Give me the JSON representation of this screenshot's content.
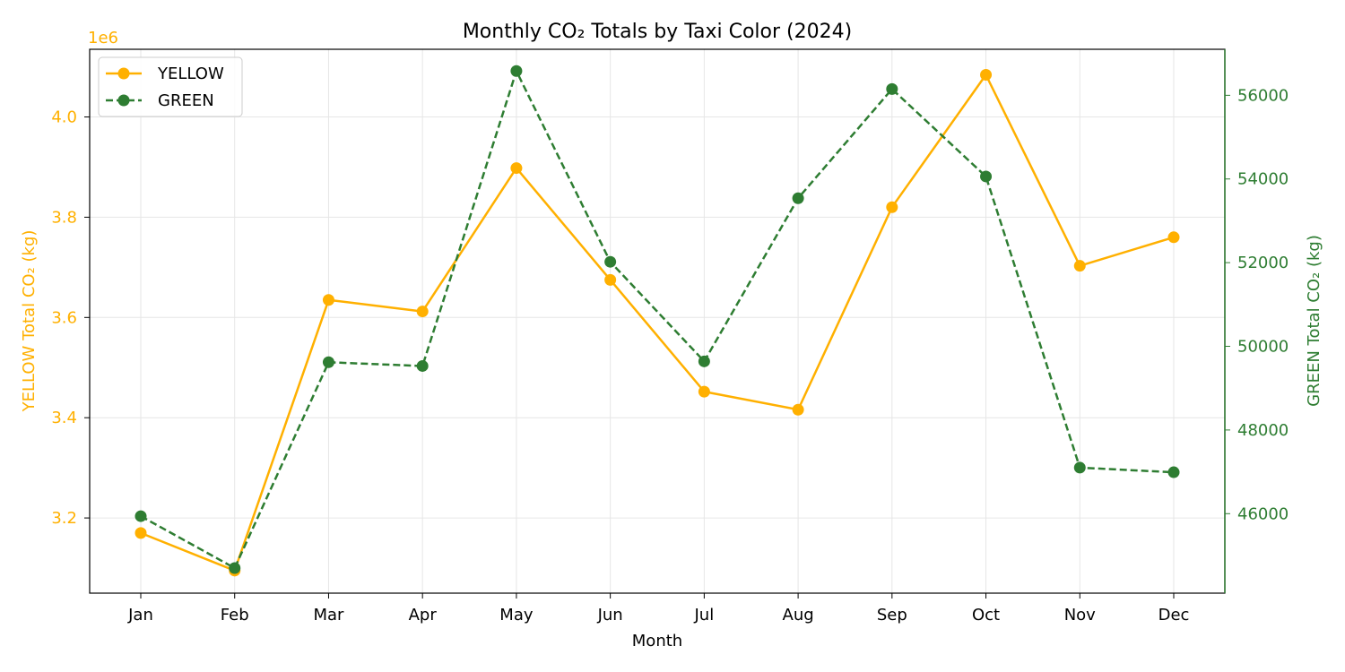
{
  "chart_data": {
    "type": "line",
    "title": "Monthly CO₂ Totals by Taxi Color (2024)",
    "xlabel": "Month",
    "categories": [
      "Jan",
      "Feb",
      "Mar",
      "Apr",
      "May",
      "Jun",
      "Jul",
      "Aug",
      "Sep",
      "Oct",
      "Nov",
      "Dec"
    ],
    "y_left": {
      "label": "YELLOW Total CO₂ (kg)",
      "offset_text": "1e6",
      "range": [
        3.05,
        4.135
      ],
      "ticks": [
        3.2,
        3.4,
        3.6,
        3.8,
        4.0
      ],
      "tick_labels": [
        "3.2",
        "3.4",
        "3.6",
        "3.8",
        "4.0"
      ],
      "color": "#ffb000"
    },
    "y_right": {
      "label": "GREEN Total CO₂ (kg)",
      "range": [
        44100,
        57100
      ],
      "ticks": [
        46000,
        48000,
        50000,
        52000,
        54000,
        56000
      ],
      "tick_labels": [
        "46000",
        "48000",
        "50000",
        "52000",
        "54000",
        "56000"
      ],
      "color": "#2e7d32"
    },
    "series": [
      {
        "name": "YELLOW",
        "axis": "left",
        "color": "#ffb000",
        "line_style": "solid",
        "marker": "circle",
        "values": [
          3.17,
          3.095,
          3.635,
          3.612,
          3.898,
          3.675,
          3.452,
          3.416,
          3.82,
          4.084,
          3.703,
          3.76
        ]
      },
      {
        "name": "GREEN",
        "axis": "right",
        "color": "#2e7d32",
        "line_style": "dashed",
        "marker": "circle",
        "values": [
          45940,
          44700,
          49620,
          49530,
          56580,
          52020,
          49640,
          53540,
          56150,
          54060,
          47100,
          46990
        ]
      }
    ],
    "grid": true,
    "legend_position": "top-left"
  }
}
